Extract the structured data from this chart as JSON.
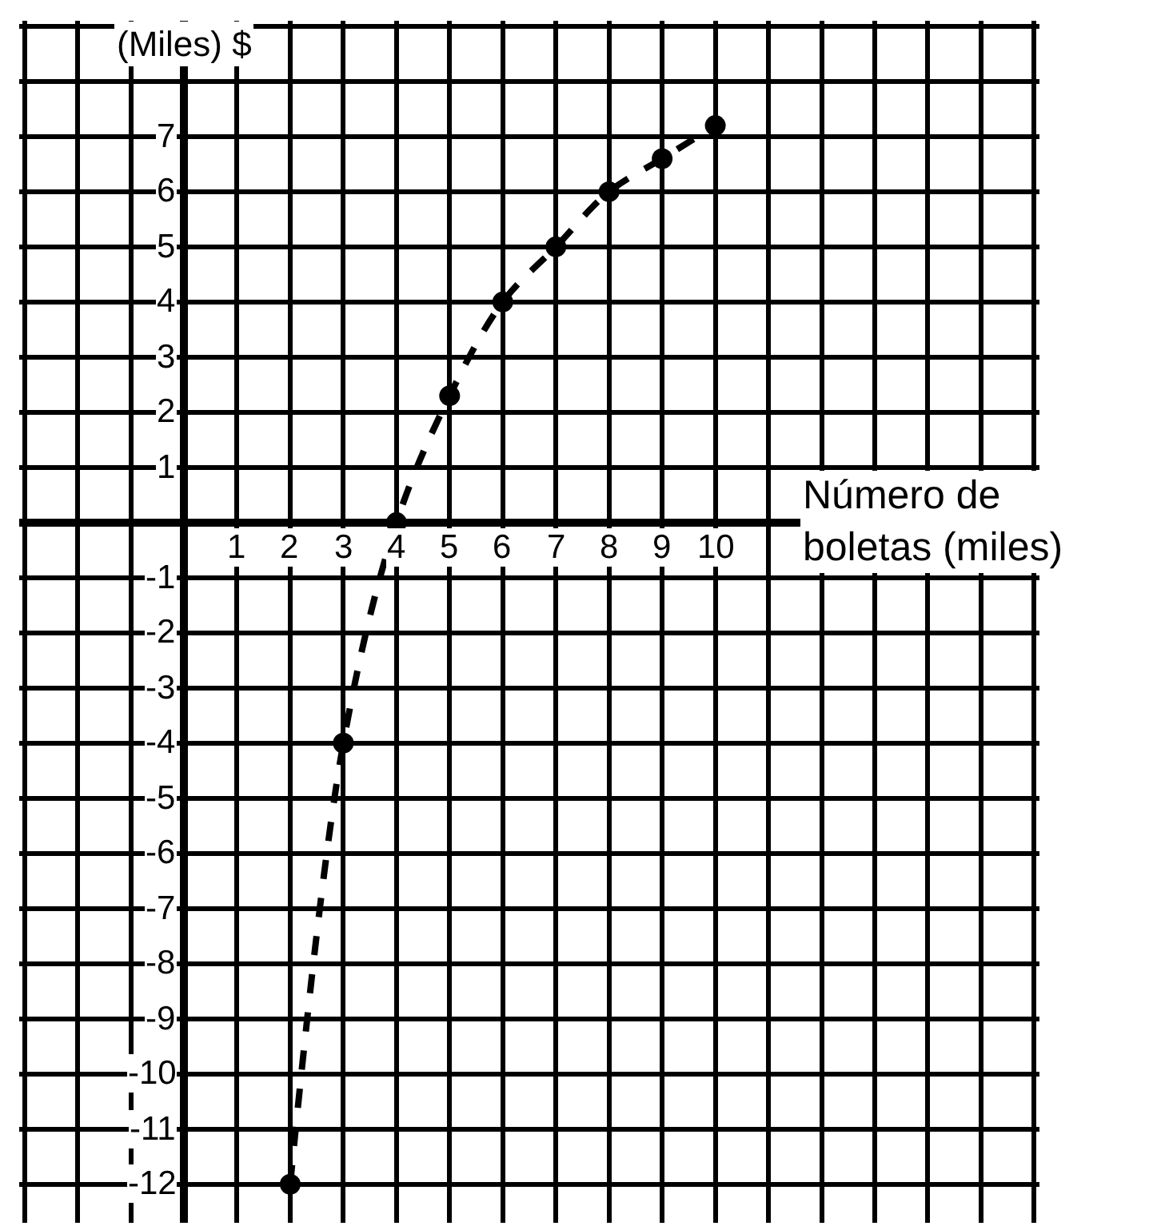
{
  "chart_data": {
    "type": "line",
    "xlabel": "Número de\nboletas (miles)",
    "ylabel": "(Miles) $",
    "x": [
      2,
      3,
      4,
      5,
      6,
      7,
      8,
      9,
      10
    ],
    "series": [
      {
        "color": "#000000",
        "values": [
          -12,
          -4,
          0,
          2.3,
          4,
          5,
          6,
          6.6,
          7.2
        ]
      }
    ],
    "xlim": [
      -3.1,
      16.1
    ],
    "ylim": [
      -12.7,
      9.1
    ],
    "xticks": [
      {
        "value": -3,
        "label": null
      },
      {
        "value": -2,
        "label": null
      },
      {
        "value": -1,
        "label": null
      },
      {
        "value": 0,
        "label": null
      },
      1,
      2,
      3,
      4,
      5,
      6,
      7,
      8,
      9,
      10,
      {
        "value": 11,
        "label": null
      },
      {
        "value": 12,
        "label": null
      },
      {
        "value": 13,
        "label": null
      },
      {
        "value": 14,
        "label": null
      },
      {
        "value": 15,
        "label": null
      },
      {
        "value": 16,
        "label": null
      }
    ],
    "yticks": [
      -12,
      -11,
      -10,
      -9,
      -8,
      -7,
      -6,
      -5,
      -4,
      -3,
      -2,
      -1,
      {
        "value": 0,
        "label": null
      },
      1,
      2,
      3,
      4,
      5,
      6,
      7,
      {
        "value": 8,
        "label": null
      },
      {
        "value": 9,
        "label": null
      }
    ],
    "grid": true,
    "marker": "circle",
    "line_style": "dashed",
    "legend": false
  }
}
